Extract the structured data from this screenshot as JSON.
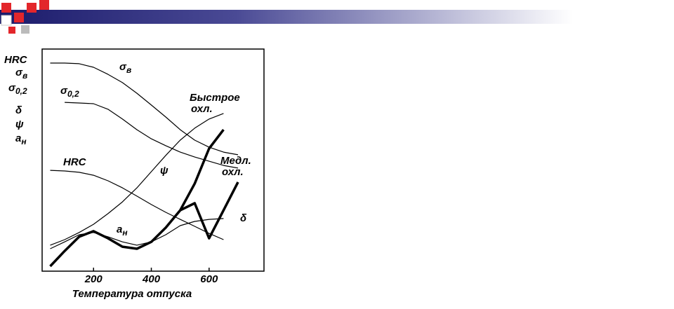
{
  "chart_data": {
    "type": "line",
    "xlabel": "Температура отпуска",
    "ylabel": [
      {
        "text": "HRC"
      },
      {
        "text": "σ",
        "sub": "в"
      },
      {
        "text": "σ",
        "sub": "0,2"
      },
      {
        "text": "δ"
      },
      {
        "text": "ψ"
      },
      {
        "text": "a",
        "sub": "н"
      }
    ],
    "x": [
      50,
      100,
      150,
      200,
      250,
      300,
      350,
      400,
      450,
      500,
      550,
      600,
      650,
      700
    ],
    "xlim": [
      22,
      790
    ],
    "xticks": [
      200,
      400,
      600
    ],
    "ylim": [
      0,
      100
    ],
    "series": [
      {
        "name": "σ",
        "sub": "в",
        "color": "#000000",
        "width": 1.2,
        "values": [
          93.7,
          93.7,
          93.4,
          91.8,
          88.6,
          84.9,
          80.1,
          74.8,
          69.4,
          63.7,
          59.0,
          55.8,
          53.6,
          52.4
        ]
      },
      {
        "name": "σ",
        "sub": "0,2",
        "color": "#000000",
        "width": 1.2,
        "values": [
          null,
          76.0,
          75.7,
          75.4,
          72.9,
          68.5,
          63.7,
          59.6,
          56.5,
          53.6,
          51.4,
          49.5,
          47.6,
          46.4
        ]
      },
      {
        "name": "HRC",
        "color": "#000000",
        "width": 1.2,
        "values": [
          45.4,
          45.1,
          44.5,
          43.2,
          40.7,
          37.5,
          33.8,
          30.0,
          26.5,
          23.3,
          20.2,
          17.0,
          14.2,
          null
        ]
      },
      {
        "name": "ψ",
        "color": "#000000",
        "width": 1.2,
        "values": [
          11.7,
          14.2,
          17.4,
          21.1,
          25.9,
          31.2,
          37.5,
          44.8,
          52.1,
          59.0,
          64.4,
          68.5,
          71.0,
          null
        ]
      },
      {
        "name": "δ",
        "color": "#000000",
        "width": 1.2,
        "values": [
          10.1,
          13.2,
          16.4,
          17.4,
          15.5,
          13.2,
          11.7,
          13.2,
          16.4,
          20.5,
          22.4,
          23.3,
          23.7,
          null
        ]
      },
      {
        "name": "a",
        "sub": "н",
        "color": "#000000",
        "width": 3.5,
        "values": [
          2.2,
          9.1,
          15.5,
          18.0,
          14.8,
          11.0,
          10.1,
          13.2,
          19.6,
          27.4,
          null,
          null,
          null,
          null
        ]
      },
      {
        "name": "Быстрое",
        "name2": "охл.",
        "color": "#000000",
        "width": 3.5,
        "values": [
          null,
          null,
          null,
          null,
          null,
          null,
          null,
          null,
          null,
          27.4,
          39.4,
          55.2,
          63.7,
          null
        ]
      },
      {
        "name": "Медл.",
        "name2": "охл.",
        "color": "#000000",
        "width": 3.5,
        "values": [
          null,
          null,
          null,
          null,
          null,
          null,
          null,
          null,
          null,
          27.4,
          30.6,
          14.8,
          27.4,
          40.1
        ]
      }
    ]
  }
}
